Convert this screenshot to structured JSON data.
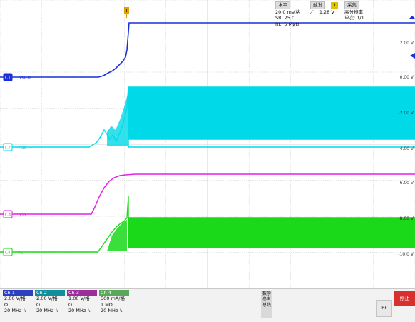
{
  "channel_markers": [
    {
      "id": "C1",
      "label": "VOUT",
      "color": "#1a2fd6"
    },
    {
      "id": "C2",
      "label": "SW",
      "color": "#00d9e8"
    },
    {
      "id": "C3",
      "label": "VIN",
      "color": "#e61fe6"
    },
    {
      "id": "C4",
      "label": "IL",
      "color": "#19d919"
    }
  ],
  "right_scale_labels": [
    "2.00 V",
    "0.00 V",
    "-2.00 V",
    "-4.00 V",
    "-6.00 V",
    "-8.00 V",
    "-10.0 V"
  ],
  "channels": [
    {
      "name": "Ch 1",
      "scale": "2.00 V/格",
      "coupling": "Ω",
      "bw": "20 MHz",
      "color": "#2b3fc0"
    },
    {
      "name": "Ch 2",
      "scale": "2.00 V/格",
      "coupling": "Ω",
      "bw": "20 MHz",
      "color": "#0f8f9a"
    },
    {
      "name": "Ch 3",
      "scale": "1.00 V/格",
      "coupling": "Ω",
      "bw": "20 MHz",
      "color": "#9a2f9a"
    },
    {
      "name": "Ch 4",
      "scale": "500 mA/格",
      "coupling": "1 MΩ",
      "bw": "20 MHz",
      "color": "#5aa85a"
    }
  ],
  "side_buttons": [
    "数学",
    "参考",
    "总线"
  ],
  "horizontal": {
    "header": "水平",
    "scale": "20.0 ms/格",
    "sample": "SR: 25.0 ...",
    "record": "RL: 5 Mpts"
  },
  "trigger": {
    "header": "触发",
    "source": "1",
    "level": "1.28 V"
  },
  "acquire": {
    "header": "采集",
    "mode": "高分辨率",
    "count": "单次: 1/1"
  },
  "rf_label": "RF",
  "stop_label": "停止",
  "colors": {
    "ch1": "#1a2fd6",
    "ch2": "#00d9e8",
    "ch3": "#e61fe6",
    "ch4": "#19d919",
    "grid": "#c8c8c8",
    "trigger": "#e0a000"
  }
}
